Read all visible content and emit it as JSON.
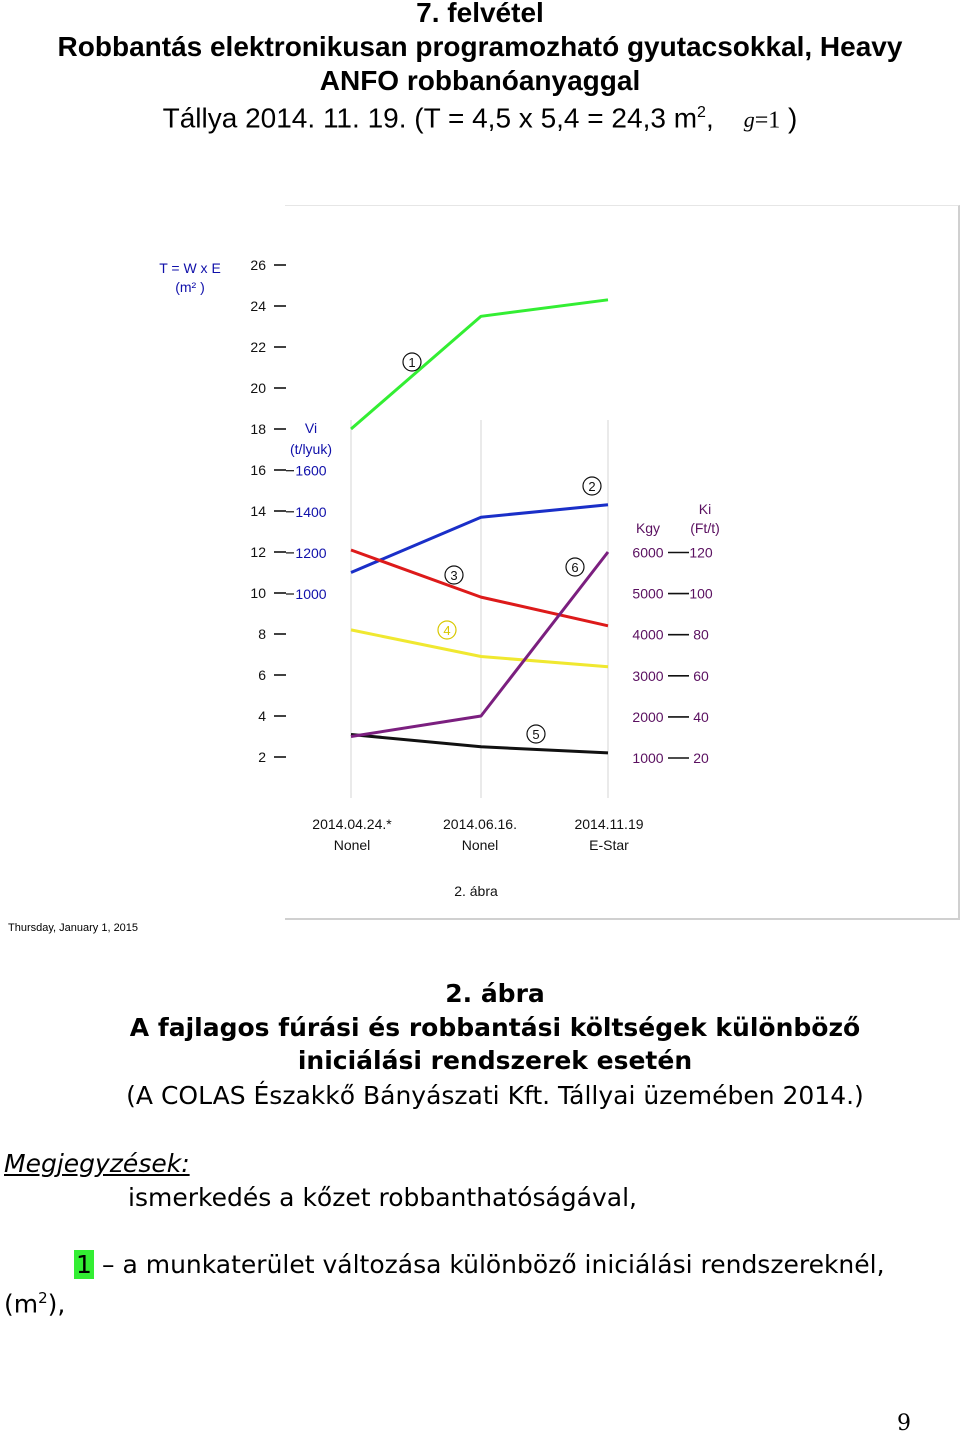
{
  "header": {
    "line1": "7. felvétel",
    "line2": "Robbantás elektronikusan programozható gyutacsokkal, Heavy",
    "line3": "ANFO robbanóanyaggal",
    "line4_main": "Tállya 2014. 11. 19. (T = 4,5 x 5,4 = 24,3 m",
    "line4_sup": "2",
    "line4_comma": ",",
    "line4_g": "g",
    "line4_eq": "=1",
    "line4_end": " )"
  },
  "chart_data": {
    "type": "line",
    "title": "",
    "axes": {
      "T": {
        "label_line1": "T = W x E",
        "label_line2": "(m² )",
        "ticks": [
          2,
          4,
          6,
          8,
          10,
          12,
          14,
          16,
          18,
          20,
          22,
          24,
          26
        ],
        "color": "#111111"
      },
      "Vi": {
        "label_line1": "Vi",
        "label_line2": "(t/lyuk)",
        "ticks": [
          1000,
          1200,
          1400,
          1600
        ],
        "color": "#1010aa"
      },
      "Kgy": {
        "label": "Kgy",
        "ticks": [
          1000,
          2000,
          3000,
          4000,
          5000,
          6000
        ],
        "color": "#5a1060"
      },
      "Ki": {
        "label_line1": "Ki",
        "label_line2": "(Ft/t)",
        "ticks": [
          20,
          40,
          60,
          80,
          100,
          120
        ],
        "color": "#5a1060"
      }
    },
    "categories": [
      {
        "line1": "2014.04.24.*",
        "line2": "Nonel"
      },
      {
        "line1": "2014.06.16.",
        "line2": "Nonel"
      },
      {
        "line1": "2014.11.19",
        "line2": "E-Star"
      }
    ],
    "series": [
      {
        "marker": "1",
        "color": "#33ee33",
        "axis": "T",
        "values": [
          18,
          23.5,
          24.3
        ]
      },
      {
        "marker": "2",
        "color": "#1a2fc8",
        "axis": "T",
        "values": [
          11,
          13.7,
          14.3
        ]
      },
      {
        "marker": "3",
        "color": "#dd1a1a",
        "axis": "T",
        "values": [
          12.1,
          9.8,
          8.4
        ]
      },
      {
        "marker": "4",
        "color": "#f0e830",
        "axis": "T",
        "values": [
          8.2,
          6.9,
          6.4
        ]
      },
      {
        "marker": "5",
        "color": "#111111",
        "axis": "T",
        "values": [
          3.1,
          2.5,
          2.2
        ]
      },
      {
        "marker": "6",
        "color": "#7b1f7f",
        "axis": "T",
        "values": [
          3.0,
          4.0,
          12.0
        ]
      }
    ],
    "grid": false,
    "footnote": "2. ábra"
  },
  "chart_date": "Thursday, January 1, 2015",
  "caption": {
    "line1": "2. ábra",
    "line2": "A fajlagos fúrási és robbantási költségek különböző",
    "line3": "iniciálási rendszerek esetén",
    "line4": "(A COLAS Északkő Bányászati Kft. Tállyai üzemében 2014.)"
  },
  "notes": {
    "heading": "Megjegyzések:",
    "line1": "ismerkedés a kőzet robbanthatóságával,",
    "item_marker": "1",
    "item_text": "–   a munkaterület változása különböző iniciálási rendszereknél,",
    "item_unit_pre": "(m",
    "item_unit_sup": "2",
    "item_unit_post": "),"
  },
  "page_number": "9"
}
